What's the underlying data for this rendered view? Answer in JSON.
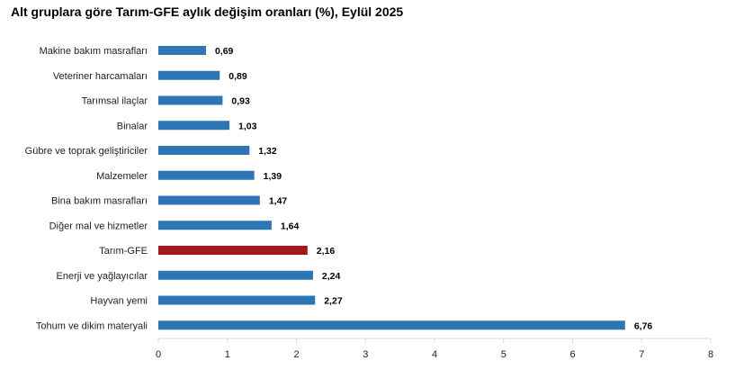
{
  "chart_data": {
    "type": "bar",
    "orientation": "horizontal",
    "title": "Alt gruplara göre Tarım-GFE aylık değişim oranları (%), Eylül 2025",
    "categories": [
      "Makine bakım masrafları",
      "Veteriner harcamaları",
      "Tarımsal ilaçlar",
      "Binalar",
      "Gübre ve toprak geliştiriciler",
      "Malzemeler",
      "Bina bakım masrafları",
      "Diğer mal ve hizmetler",
      "Tarım-GFE",
      "Enerji  ve yağlayıcılar",
      "Hayvan yemi",
      "Tohum ve dikim materyali"
    ],
    "values": [
      0.69,
      0.89,
      0.93,
      1.03,
      1.32,
      1.39,
      1.47,
      1.64,
      2.16,
      2.24,
      2.27,
      6.76
    ],
    "value_labels": [
      "0,69",
      "0,89",
      "0,93",
      "1,03",
      "1,32",
      "1,39",
      "1,47",
      "1,64",
      "2,16",
      "2,24",
      "2,27",
      "6,76"
    ],
    "highlight_index": 8,
    "xlim": [
      0,
      8
    ],
    "xticks": [
      "0",
      "1",
      "2",
      "3",
      "4",
      "5",
      "6",
      "7",
      "8"
    ],
    "grid": false,
    "colors": {
      "bar": "#2e75b6",
      "highlight": "#a5161d"
    }
  }
}
